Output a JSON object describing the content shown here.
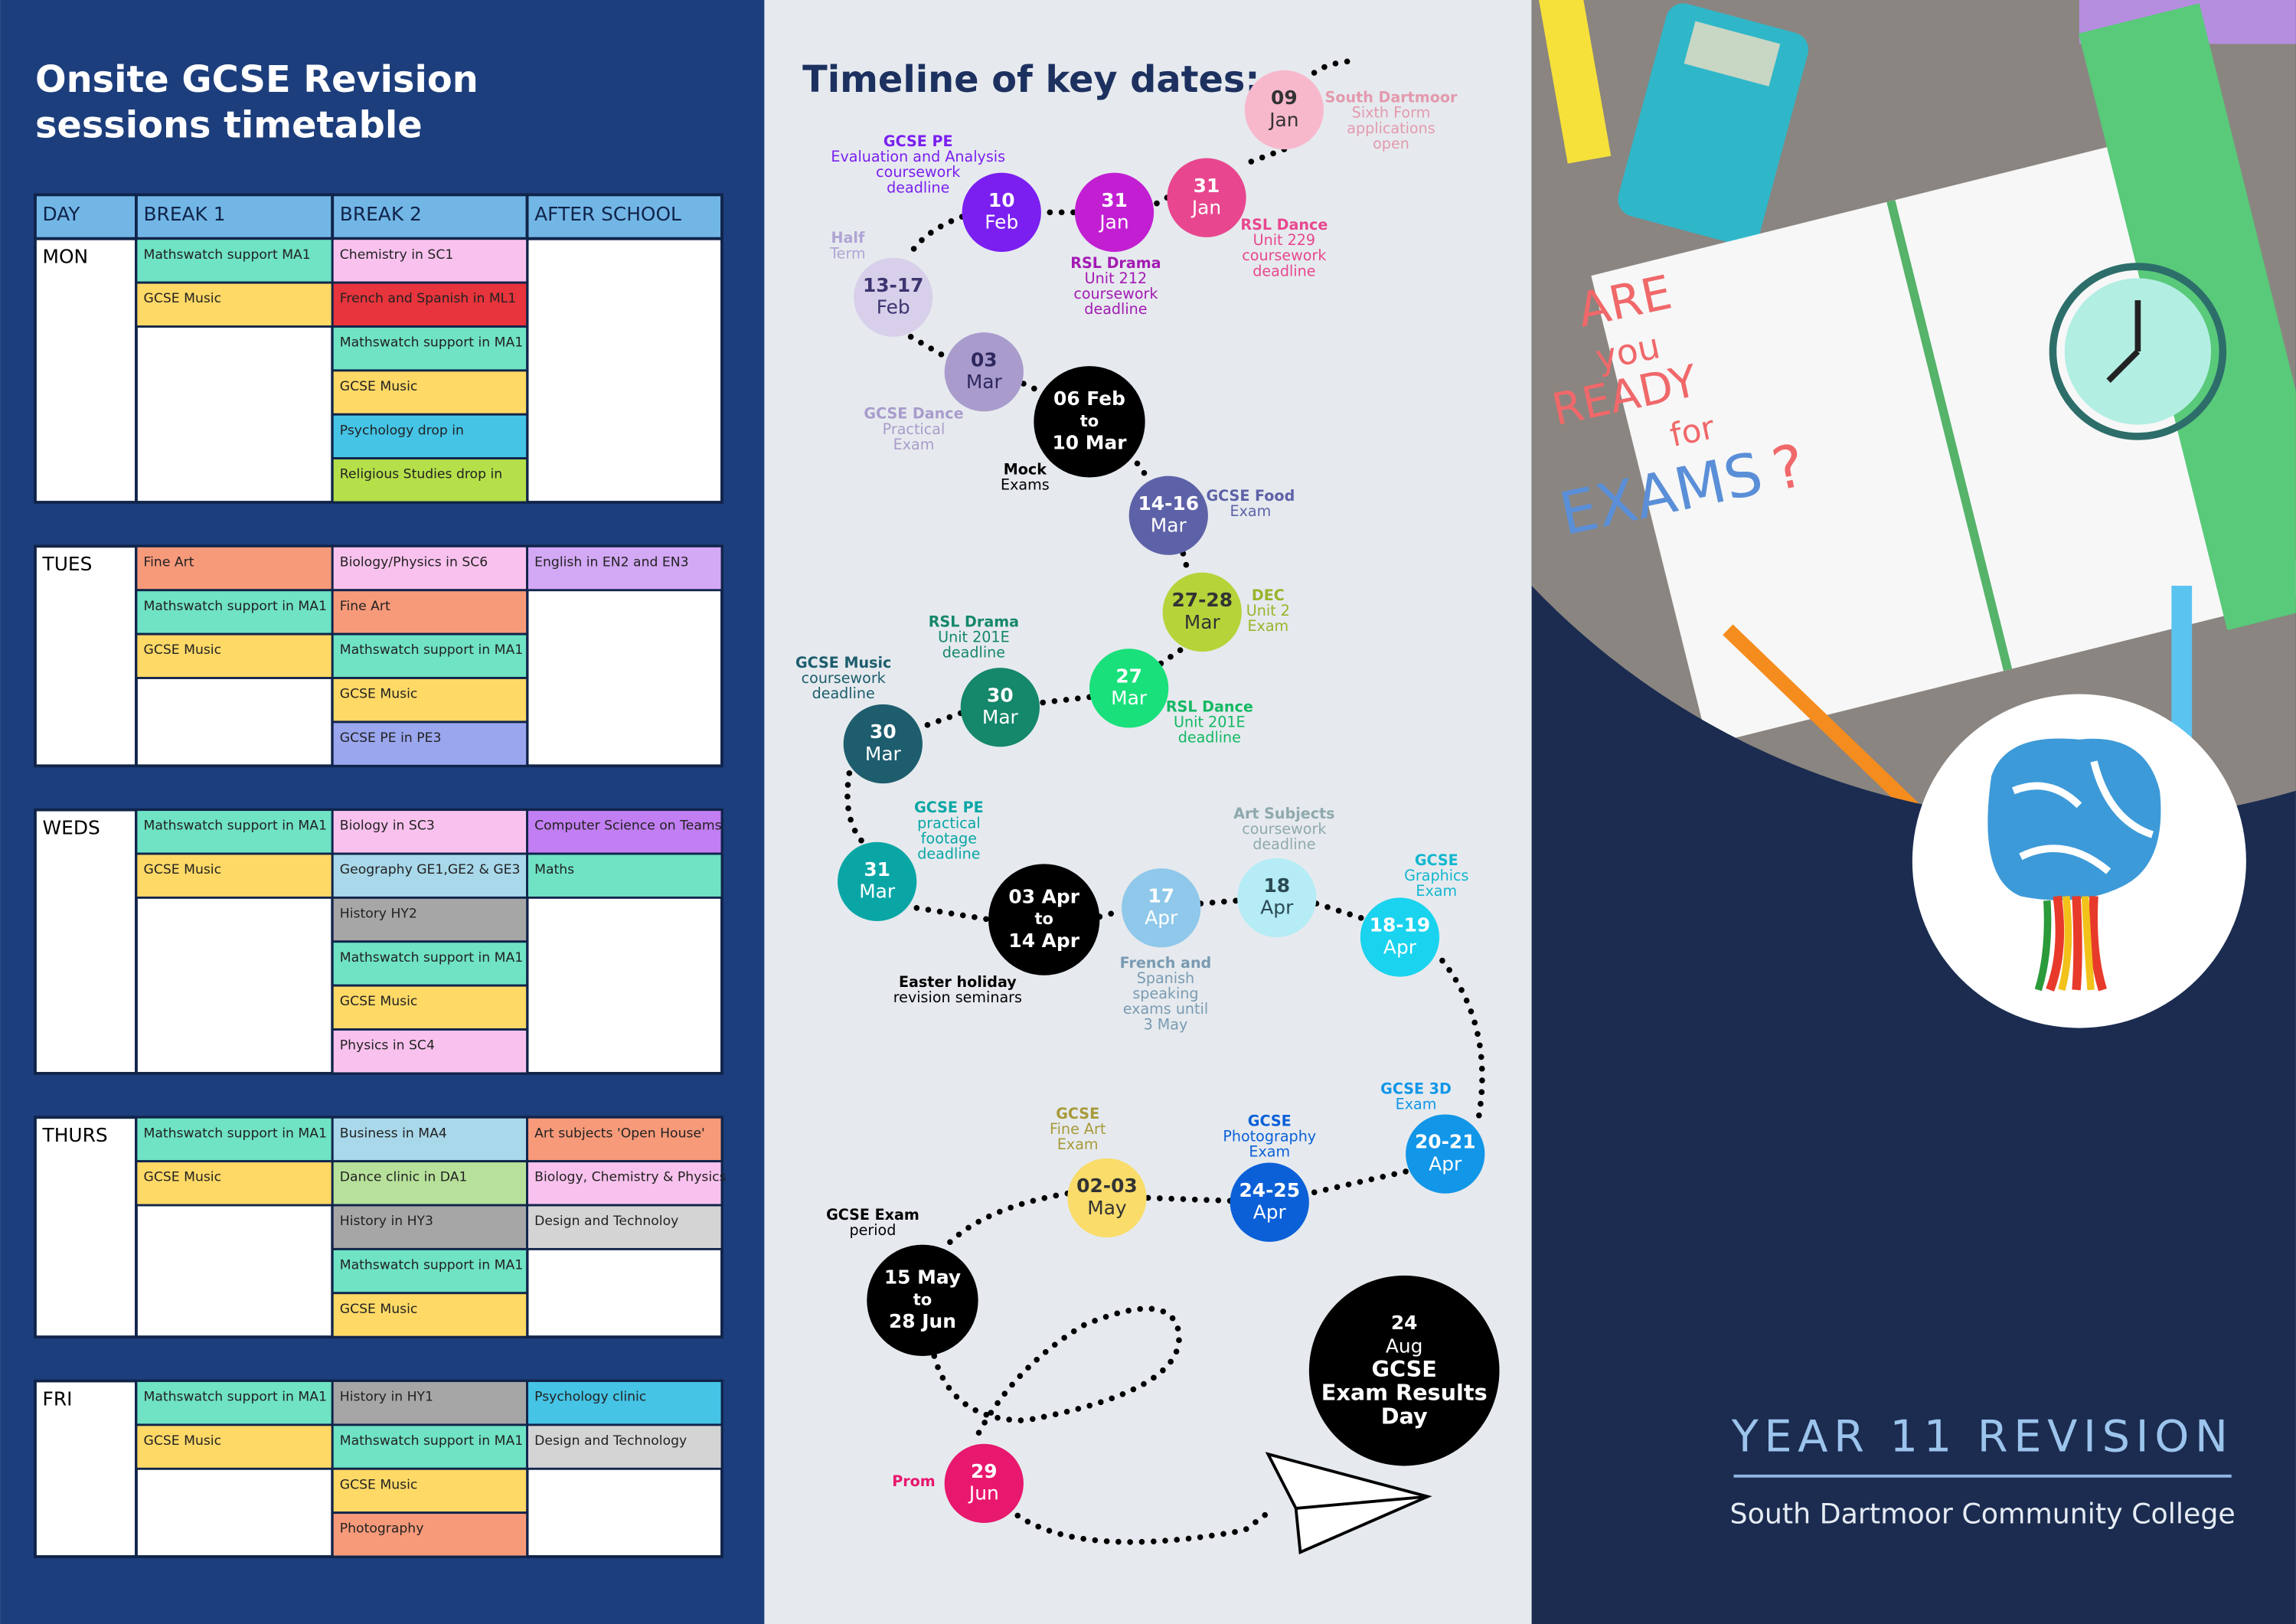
{
  "timetable": {
    "title": [
      "Onsite GCSE Revision",
      "sessions timetable"
    ],
    "headers": [
      "DAY",
      "BREAK 1",
      "BREAK 2",
      "AFTER SCHOOL"
    ],
    "days": [
      {
        "day": "MON",
        "break1": [
          {
            "text": "Mathswatch support MA1",
            "color": "#6fe3c4"
          },
          {
            "text": "GCSE Music",
            "color": "#ffd966"
          }
        ],
        "break2": [
          {
            "text": "Chemistry in SC1",
            "color": "#f9c2ee"
          },
          {
            "text": "French and Spanish in ML1",
            "color": "#e8343c"
          },
          {
            "text": "Mathswatch support in MA1",
            "color": "#6fe3c4"
          },
          {
            "text": "GCSE Music",
            "color": "#ffd966"
          },
          {
            "text": "Psychology drop in",
            "color": "#45c4e6"
          },
          {
            "text": "Religious Studies drop in",
            "color": "#b5e04a"
          }
        ],
        "after": []
      },
      {
        "day": "TUES",
        "break1": [
          {
            "text": "Fine Art",
            "color": "#f79a7a"
          },
          {
            "text": "Mathswatch support in MA1",
            "color": "#6fe3c4"
          },
          {
            "text": "GCSE Music",
            "color": "#ffd966"
          }
        ],
        "break2": [
          {
            "text": "Biology/Physics in SC6",
            "color": "#f9c2ee"
          },
          {
            "text": "Fine Art",
            "color": "#f79a7a"
          },
          {
            "text": "Mathswatch support in MA1",
            "color": "#6fe3c4"
          },
          {
            "text": "GCSE Music",
            "color": "#ffd966"
          },
          {
            "text": "GCSE PE in PE3",
            "color": "#9aa6ee"
          }
        ],
        "after": [
          {
            "text": "English in EN2 and EN3",
            "color": "#d3a8f5"
          }
        ]
      },
      {
        "day": "WEDS",
        "break1": [
          {
            "text": "Mathswatch support in MA1",
            "color": "#6fe3c4"
          },
          {
            "text": "GCSE Music",
            "color": "#ffd966"
          }
        ],
        "break2": [
          {
            "text": "Biology in SC3",
            "color": "#f9c2ee"
          },
          {
            "text": "Geography  GE1,GE2 & GE3",
            "color": "#a8d8ea"
          },
          {
            "text": "History HY2",
            "color": "#a6a6a6"
          },
          {
            "text": "Mathswatch support in MA1",
            "color": "#6fe3c4"
          },
          {
            "text": "GCSE Music",
            "color": "#ffd966"
          },
          {
            "text": "Physics in SC4",
            "color": "#f9c2ee"
          }
        ],
        "after": [
          {
            "text": "Computer Science on Teams",
            "color": "#c27ef3"
          },
          {
            "text": "Maths",
            "color": "#6fe3c4"
          }
        ]
      },
      {
        "day": "THURS",
        "break1": [
          {
            "text": "Mathswatch support in MA1",
            "color": "#6fe3c4"
          },
          {
            "text": "GCSE Music",
            "color": "#ffd966"
          }
        ],
        "break2": [
          {
            "text": "Business in MA4",
            "color": "#a8d8ea"
          },
          {
            "text": "Dance clinic in DA1",
            "color": "#b7e19a"
          },
          {
            "text": "History in HY3",
            "color": "#a6a6a6"
          },
          {
            "text": "Mathswatch support in MA1",
            "color": "#6fe3c4"
          },
          {
            "text": "GCSE Music",
            "color": "#ffd966"
          }
        ],
        "after": [
          {
            "text": "Art subjects 'Open House'",
            "color": "#f79a7a"
          },
          {
            "text": "Biology, Chemistry & Physics",
            "color": "#f9c2ee"
          },
          {
            "text": "Design and Technoloy",
            "color": "#d4d4d4"
          }
        ]
      },
      {
        "day": "FRI",
        "break1": [
          {
            "text": "Mathswatch support in MA1",
            "color": "#6fe3c4"
          },
          {
            "text": "GCSE Music",
            "color": "#ffd966"
          }
        ],
        "break2": [
          {
            "text": "History in HY1",
            "color": "#a6a6a6"
          },
          {
            "text": "Mathswatch support in MA1",
            "color": "#6fe3c4"
          },
          {
            "text": "GCSE Music",
            "color": "#ffd966"
          },
          {
            "text": "Photography",
            "color": "#f79a7a"
          }
        ],
        "after": [
          {
            "text": "Psychology clinic",
            "color": "#45c4e6"
          },
          {
            "text": "Design and Technology",
            "color": "#d4d4d4"
          }
        ]
      }
    ]
  },
  "timeline": {
    "title": "Timeline of key dates:",
    "events": [
      {
        "label": [
          "09",
          "Jan"
        ],
        "color": "#f8b8cc",
        "text_color": "#333333",
        "caption": [
          "South Dartmoor",
          "Sixth Form",
          "applications",
          "open"
        ],
        "caption_color": "#e39aae"
      },
      {
        "label": [
          "31",
          "Jan"
        ],
        "color": "#e8478f",
        "text_color": "#ffffff",
        "caption": [
          "RSL Dance",
          "Unit 229",
          "coursework",
          "deadline"
        ],
        "caption_color": "#e8478f"
      },
      {
        "label": [
          "31",
          "Jan"
        ],
        "color": "#c21fd3",
        "text_color": "#ffffff",
        "caption": [
          "RSL Drama",
          "Unit  212",
          "coursework",
          "deadline"
        ],
        "caption_color": "#a31ab3"
      },
      {
        "label": [
          "10",
          "Feb"
        ],
        "color": "#7a1ff0",
        "text_color": "#ffffff",
        "caption": [
          "GCSE PE",
          "Evaluation and Analysis",
          "coursework",
          "deadline"
        ],
        "caption_color": "#7a1ff0"
      },
      {
        "label": [
          "13-17",
          "Feb"
        ],
        "color": "#d8d0ea",
        "text_color": "#3d3570",
        "caption": [
          "Half",
          "Term"
        ],
        "caption_color": "#b0a4d4"
      },
      {
        "label": [
          "03",
          "Mar"
        ],
        "color": "#a99ccc",
        "text_color": "#2f2860",
        "caption": [
          "GCSE Dance",
          "Practical",
          "Exam"
        ],
        "caption_color": "#a99ccc"
      },
      {
        "label": [
          "06 Feb",
          "to",
          "10 Mar"
        ],
        "color": "#000000",
        "text_color": "#ffffff",
        "caption": [
          "Mock",
          "Exams"
        ],
        "caption_color": "#000000"
      },
      {
        "label": [
          "14-16",
          "Mar"
        ],
        "color": "#5d62a8",
        "text_color": "#ffffff",
        "caption": [
          "GCSE Food",
          "Exam"
        ],
        "caption_color": "#5d62a8"
      },
      {
        "label": [
          "27-28",
          "Mar"
        ],
        "color": "#b5d43a",
        "text_color": "#333333",
        "caption": [
          "DEC",
          "Unit 2",
          "Exam"
        ],
        "caption_color": "#9ab42a"
      },
      {
        "label": [
          "27",
          "Mar"
        ],
        "color": "#19e07a",
        "text_color": "#ffffff",
        "caption": [
          "RSL Dance",
          "Unit 201E",
          "deadline"
        ],
        "caption_color": "#14b864"
      },
      {
        "label": [
          "30",
          "Mar"
        ],
        "color": "#15876b",
        "text_color": "#ffffff",
        "caption": [
          "RSL Drama",
          "Unit 201E",
          "deadline"
        ],
        "caption_color": "#15876b"
      },
      {
        "label": [
          "30",
          "Mar"
        ],
        "color": "#1d5d6d",
        "text_color": "#ffffff",
        "caption": [
          "GCSE Music",
          "coursework",
          "deadline"
        ],
        "caption_color": "#1d5d6d"
      },
      {
        "label": [
          "31",
          "Mar"
        ],
        "color": "#0aa6a6",
        "text_color": "#ffffff",
        "caption": [
          "GCSE PE",
          "practical",
          "footage",
          "deadline"
        ],
        "caption_color": "#0aa6a6"
      },
      {
        "label": [
          "03 Apr",
          "to",
          "14 Apr"
        ],
        "color": "#000000",
        "text_color": "#ffffff",
        "caption": [
          "Easter holiday",
          "revision seminars"
        ],
        "caption_color": "#000000"
      },
      {
        "label": [
          "17",
          "Apr"
        ],
        "color": "#8fc8ea",
        "text_color": "#ffffff",
        "caption": [
          "French and",
          "Spanish",
          "speaking",
          "exams until",
          "3 May"
        ],
        "caption_color": "#7a9bb2"
      },
      {
        "label": [
          "18",
          "Apr"
        ],
        "color": "#b5ecf5",
        "text_color": "#2a4a55",
        "caption": [
          "Art Subjects",
          "coursework",
          "deadline"
        ],
        "caption_color": "#8fa9ad"
      },
      {
        "label": [
          "18-19",
          "Apr"
        ],
        "color": "#1ad3ee",
        "text_color": "#ffffff",
        "caption": [
          "GCSE",
          "Graphics",
          "Exam"
        ],
        "caption_color": "#12b6cf"
      },
      {
        "label": [
          "20-21",
          "Apr"
        ],
        "color": "#1296e8",
        "text_color": "#ffffff",
        "caption": [
          "GCSE 3D",
          "Exam"
        ],
        "caption_color": "#1296e8"
      },
      {
        "label": [
          "24-25",
          "Apr"
        ],
        "color": "#0b60d8",
        "text_color": "#ffffff",
        "caption": [
          "GCSE",
          "Photography",
          "Exam"
        ],
        "caption_color": "#0b60d8"
      },
      {
        "label": [
          "02-03",
          "May"
        ],
        "color": "#f9dc6a",
        "text_color": "#333333",
        "caption": [
          "GCSE",
          "Fine Art",
          "Exam"
        ],
        "caption_color": "#a89a3a"
      },
      {
        "label": [
          "15 May",
          "to",
          "28 Jun"
        ],
        "color": "#000000",
        "text_color": "#ffffff",
        "caption": [
          "GCSE Exam",
          "period"
        ],
        "caption_color": "#000000"
      },
      {
        "label": [
          "29",
          "Jun"
        ],
        "color": "#e8186e",
        "text_color": "#ffffff",
        "caption": [
          "Prom"
        ],
        "caption_color": "#e8186e"
      },
      {
        "label": [
          "24",
          "Aug",
          "GCSE",
          "Exam Results",
          "Day"
        ],
        "color": "#000000",
        "text_color": "#ffffff",
        "caption": [],
        "caption_color": "#000000"
      }
    ]
  },
  "cover": {
    "illustration": [
      "ARE",
      "you",
      "READY",
      "for",
      "EXAMS",
      "?"
    ],
    "title": "YEAR 11 REVISION",
    "subtitle": "South Dartmoor Community College"
  }
}
